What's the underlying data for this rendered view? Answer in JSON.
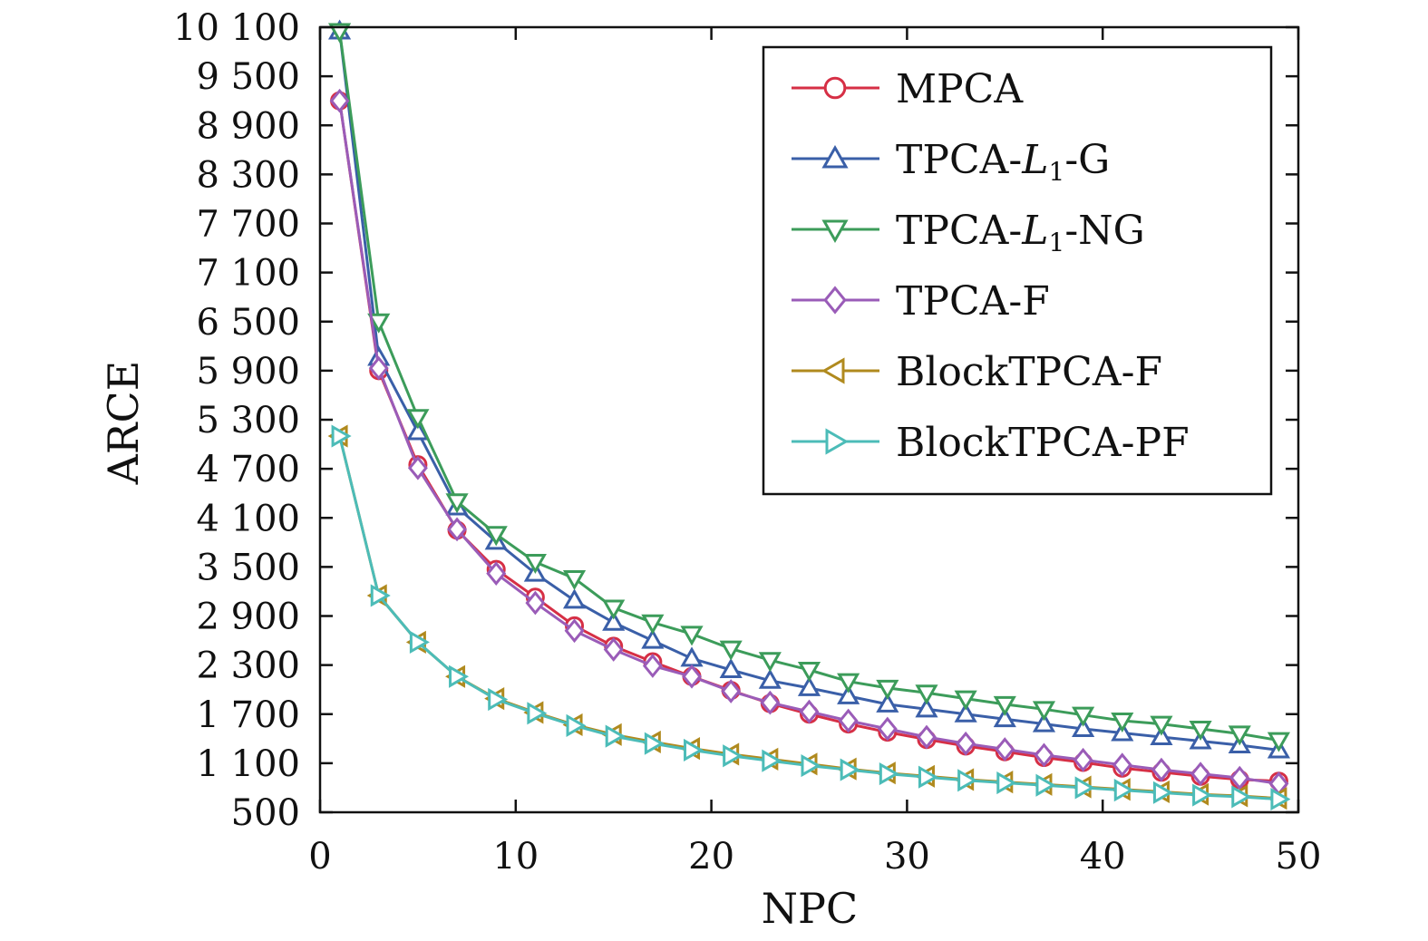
{
  "chart_data": {
    "type": "line",
    "title": "",
    "xlabel": "NPC",
    "ylabel": "ARCE",
    "xlim": [
      0,
      50
    ],
    "ylim": [
      500,
      10100
    ],
    "x_ticks": [
      0,
      10,
      20,
      30,
      40,
      50
    ],
    "x_tick_labels": [
      "0",
      "10",
      "20",
      "30",
      "40",
      "50"
    ],
    "y_ticks": [
      500,
      1100,
      1700,
      2300,
      2900,
      3500,
      4100,
      4700,
      5300,
      5900,
      6500,
      7100,
      7700,
      8300,
      8900,
      9500,
      10100
    ],
    "y_tick_labels": [
      "500",
      "1 100",
      "1 700",
      "2 300",
      "2 900",
      "3 500",
      "4 100",
      "4 700",
      "5 300",
      "5 900",
      "6 500",
      "7 100",
      "7 700",
      "8 300",
      "8 900",
      "9 500",
      "10 100"
    ],
    "grid": false,
    "legend_position": "top-right",
    "x": [
      1,
      3,
      5,
      7,
      9,
      11,
      13,
      15,
      17,
      19,
      21,
      23,
      25,
      27,
      29,
      31,
      33,
      35,
      37,
      39,
      41,
      43,
      45,
      47,
      49
    ],
    "series": [
      {
        "name": "MPCA",
        "marker": "circle",
        "color": "#d62f45",
        "values": [
          9200,
          5900,
          4750,
          3950,
          3470,
          3130,
          2780,
          2530,
          2340,
          2160,
          1990,
          1830,
          1700,
          1580,
          1480,
          1390,
          1310,
          1240,
          1170,
          1110,
          1040,
          990,
          940,
          900,
          880
        ]
      },
      {
        "name": "TPCA-L1-G",
        "marker": "triangle-up",
        "color": "#3a5fa8",
        "values": [
          10050,
          6060,
          5150,
          4230,
          3810,
          3420,
          3090,
          2820,
          2600,
          2380,
          2240,
          2110,
          2020,
          1920,
          1820,
          1760,
          1700,
          1640,
          1580,
          1520,
          1470,
          1420,
          1370,
          1320,
          1260
        ]
      },
      {
        "name": "TPCA-L1-NG",
        "marker": "triangle-down",
        "color": "#3c9c5a",
        "values": [
          10050,
          6500,
          5330,
          4300,
          3900,
          3560,
          3360,
          3000,
          2820,
          2680,
          2500,
          2360,
          2240,
          2100,
          2020,
          1960,
          1890,
          1820,
          1760,
          1690,
          1620,
          1580,
          1520,
          1460,
          1380
        ]
      },
      {
        "name": "TPCA-F",
        "marker": "diamond",
        "color": "#9a5cb8",
        "values": [
          9200,
          5930,
          4710,
          3960,
          3420,
          3060,
          2720,
          2490,
          2290,
          2160,
          1980,
          1840,
          1730,
          1620,
          1520,
          1420,
          1340,
          1270,
          1200,
          1140,
          1080,
          1020,
          970,
          920,
          850
        ]
      },
      {
        "name": "BlockTPCA-F",
        "marker": "triangle-left",
        "color": "#b08a1e",
        "values": [
          5100,
          3150,
          2580,
          2160,
          1890,
          1720,
          1570,
          1450,
          1360,
          1280,
          1210,
          1150,
          1090,
          1030,
          980,
          940,
          900,
          870,
          840,
          810,
          780,
          750,
          720,
          700,
          670
        ]
      },
      {
        "name": "BlockTPCA-PF",
        "marker": "triangle-right",
        "color": "#4cbcb8",
        "values": [
          5100,
          3150,
          2580,
          2160,
          1880,
          1710,
          1560,
          1430,
          1340,
          1260,
          1190,
          1130,
          1070,
          1020,
          970,
          930,
          890,
          860,
          830,
          800,
          770,
          740,
          710,
          690,
          660
        ]
      }
    ]
  }
}
